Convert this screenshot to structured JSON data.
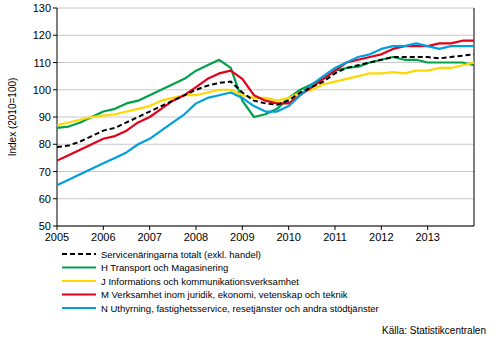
{
  "chart_data": {
    "type": "line",
    "y_label": "Index (2010=100)",
    "source": "Källa: Statistikcentralen",
    "x": [
      2005,
      2005.25,
      2005.5,
      2005.75,
      2006,
      2006.25,
      2006.5,
      2006.75,
      2007,
      2007.25,
      2007.5,
      2007.75,
      2008,
      2008.25,
      2008.5,
      2008.75,
      2009,
      2009.25,
      2009.5,
      2009.75,
      2010,
      2010.25,
      2010.5,
      2010.75,
      2011,
      2011.25,
      2011.5,
      2011.75,
      2012,
      2012.25,
      2012.5,
      2012.75,
      2013,
      2013.25,
      2013.5,
      2013.75,
      2014
    ],
    "xlim": [
      2005,
      2014
    ],
    "xticks": [
      2005,
      2006,
      2007,
      2008,
      2009,
      2010,
      2011,
      2012,
      2013
    ],
    "ylim": [
      50,
      130
    ],
    "yticks": [
      50,
      60,
      70,
      80,
      90,
      100,
      110,
      120,
      130
    ],
    "grid": true,
    "legend": "bottom",
    "series": [
      {
        "name": "Servicenäringarna totalt (exkl. handel)",
        "color": "#000000",
        "line_style": "dashed",
        "values": [
          79,
          79.5,
          81,
          83,
          85,
          86,
          88,
          90,
          92,
          94,
          96,
          98,
          100,
          101.5,
          102.5,
          103,
          99,
          96,
          95,
          94.5,
          96,
          99,
          101,
          103,
          106,
          108,
          109,
          110,
          111,
          112,
          112,
          112,
          112,
          111.5,
          112,
          112.5,
          113
        ]
      },
      {
        "name": "H Transport och Magasinering",
        "color": "#00a14b",
        "line_style": "solid",
        "values": [
          86,
          86.5,
          88,
          90,
          92,
          93,
          95,
          96,
          98,
          100,
          102,
          104,
          107,
          109,
          111,
          108,
          96,
          90,
          91,
          93,
          97,
          100,
          102,
          104,
          107,
          108,
          108.5,
          110,
          111,
          112,
          111,
          111,
          110,
          110,
          110,
          110,
          109
        ]
      },
      {
        "name": "J Informations och kommunikationsverksamhet",
        "color": "#ffd700",
        "line_style": "solid",
        "values": [
          87,
          88,
          89,
          90,
          90.5,
          91,
          92,
          93,
          94,
          96,
          97,
          98,
          98,
          99,
          100,
          100,
          98,
          97,
          97,
          96,
          97,
          99,
          100,
          102,
          103,
          104,
          105,
          106,
          106,
          106.5,
          106,
          107,
          107,
          108,
          108,
          109,
          110
        ]
      },
      {
        "name": "M Verksamhet inom juridik, ekonomi, vetenskap och teknik",
        "color": "#e2001a",
        "line_style": "solid",
        "values": [
          74,
          76,
          78,
          80,
          82,
          83,
          85,
          88,
          90,
          93,
          96,
          98,
          101,
          104,
          106,
          107,
          104,
          98,
          96,
          95,
          95,
          98,
          101,
          104,
          107,
          110,
          111,
          112,
          113,
          115,
          116,
          116,
          116,
          117,
          117,
          118,
          118
        ]
      },
      {
        "name": "N Uthyrning, fastighetsservice, resetjänster och andra stödtjänster",
        "color": "#00a0e0",
        "line_style": "solid",
        "values": [
          65,
          67,
          69,
          71,
          73,
          75,
          77,
          80,
          82,
          85,
          88,
          91,
          95,
          97,
          98,
          99,
          97,
          94,
          92,
          92,
          94,
          98,
          102,
          105,
          108,
          110,
          112,
          113,
          115,
          116,
          116,
          117,
          116,
          115,
          116,
          116,
          116
        ]
      }
    ]
  }
}
